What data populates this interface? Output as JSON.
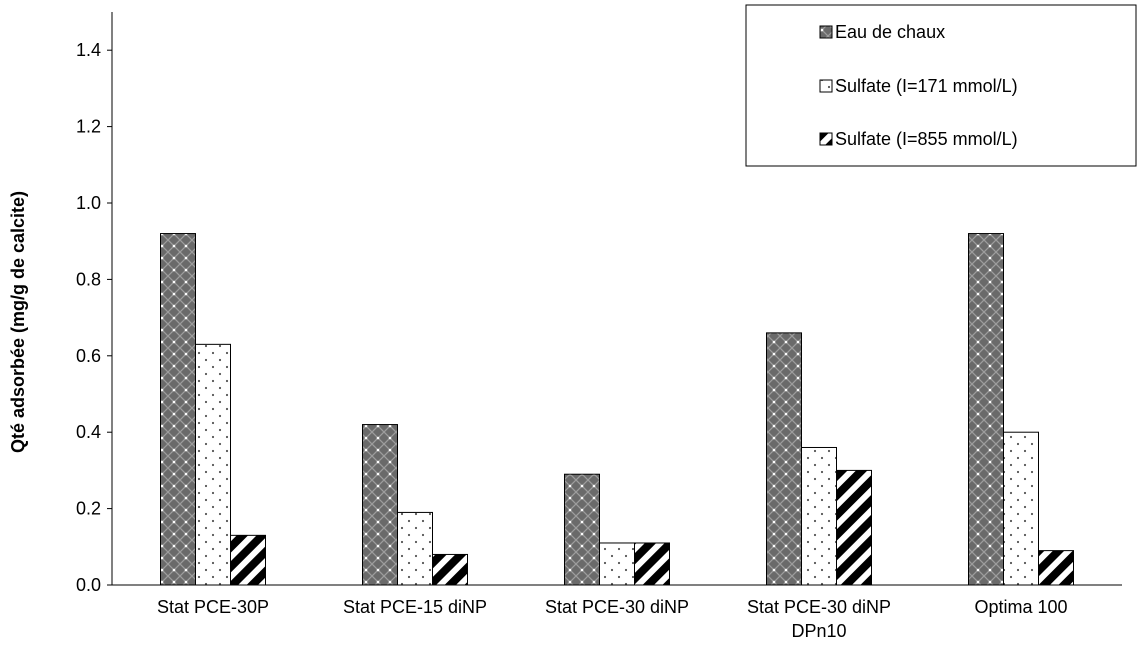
{
  "chart_data": {
    "type": "bar",
    "title": "",
    "xlabel": "",
    "ylabel": "Qté adsorbée (mg/g de calcite)",
    "ylim": [
      0,
      1.5
    ],
    "yticks": [
      "0.0",
      "0.2",
      "0.4",
      "0.6",
      "0.8",
      "1.0",
      "1.2",
      "1.4"
    ],
    "grid": false,
    "legend_position": "top-right",
    "categories": [
      [
        "Stat PCE-30P"
      ],
      [
        "Stat PCE-15 diNP"
      ],
      [
        "Stat PCE-30 diNP"
      ],
      [
        "Stat PCE-30 diNP",
        "DPn10"
      ],
      [
        "Optima 100"
      ]
    ],
    "series": [
      {
        "name": "Eau de chaux",
        "pattern": "crosshatch-dots",
        "color": "#6f6f6f",
        "values": [
          0.92,
          0.42,
          0.29,
          0.66,
          0.92
        ]
      },
      {
        "name": "Sulfate (I=171 mmol/L)",
        "pattern": "dots",
        "color": "#ffffff",
        "values": [
          0.63,
          0.19,
          0.11,
          0.36,
          0.4
        ]
      },
      {
        "name": "Sulfate (I=855 mmol/L)",
        "pattern": "diagonal-stripes",
        "color": "#000000",
        "values": [
          0.13,
          0.08,
          0.11,
          0.3,
          0.09
        ]
      }
    ]
  }
}
